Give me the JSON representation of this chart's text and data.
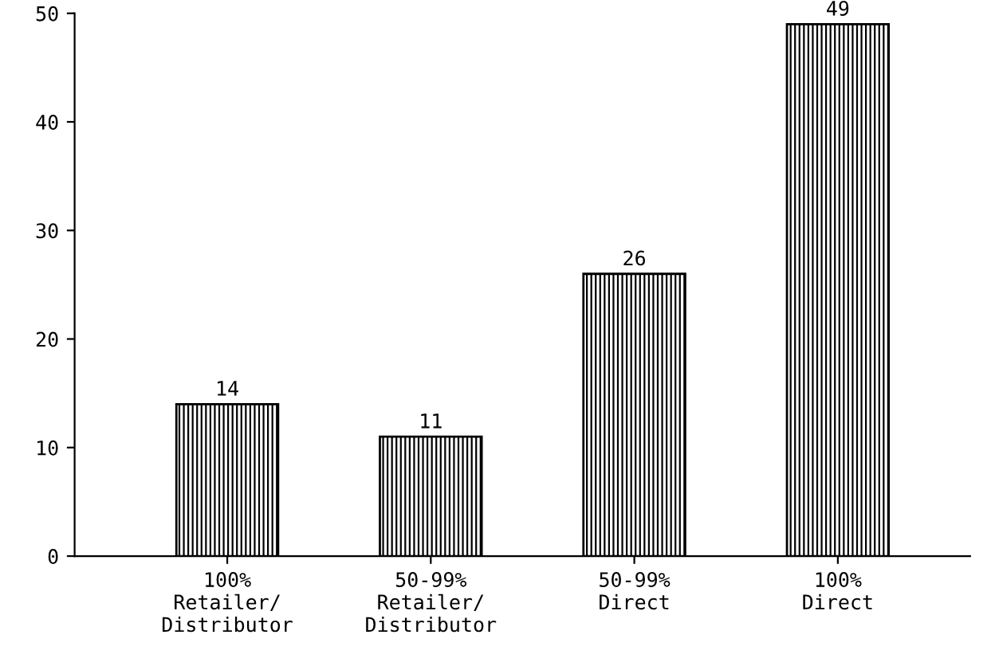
{
  "chart_data": {
    "type": "bar",
    "categories": [
      "100%\nRetailer/\nDistributor",
      "50-99%\nRetailer/\nDistributor",
      "50-99%\nDirect",
      "100%\nDirect"
    ],
    "values": [
      14,
      11,
      26,
      49
    ],
    "color": "#000000",
    "ylim": [
      0,
      50
    ],
    "yticks": [
      0,
      10,
      20,
      30,
      40,
      50
    ],
    "data_labels": true,
    "grid": false
  }
}
